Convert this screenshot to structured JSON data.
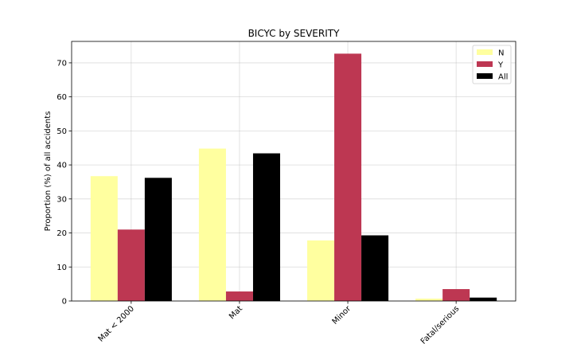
{
  "chart_data": {
    "type": "bar",
    "title": "BICYC by SEVERITY",
    "xlabel": "",
    "ylabel": "Proportion (%) of all accidents",
    "categories": [
      "Mat < 2000",
      "Mat",
      "Minor",
      "Fatal/serious"
    ],
    "series": [
      {
        "name": "N",
        "color": "#ffff9f",
        "values": [
          36.7,
          44.8,
          17.8,
          0.7
        ]
      },
      {
        "name": "Y",
        "color": "#bd3752",
        "values": [
          21.0,
          2.8,
          72.7,
          3.5
        ]
      },
      {
        "name": "All",
        "color": "#000000",
        "values": [
          36.2,
          43.4,
          19.3,
          1.0
        ]
      }
    ],
    "ylim": [
      0,
      76.3
    ],
    "yticks": [
      0,
      10,
      20,
      30,
      40,
      50,
      60,
      70
    ],
    "grid": true,
    "legend_position": "top-right"
  }
}
